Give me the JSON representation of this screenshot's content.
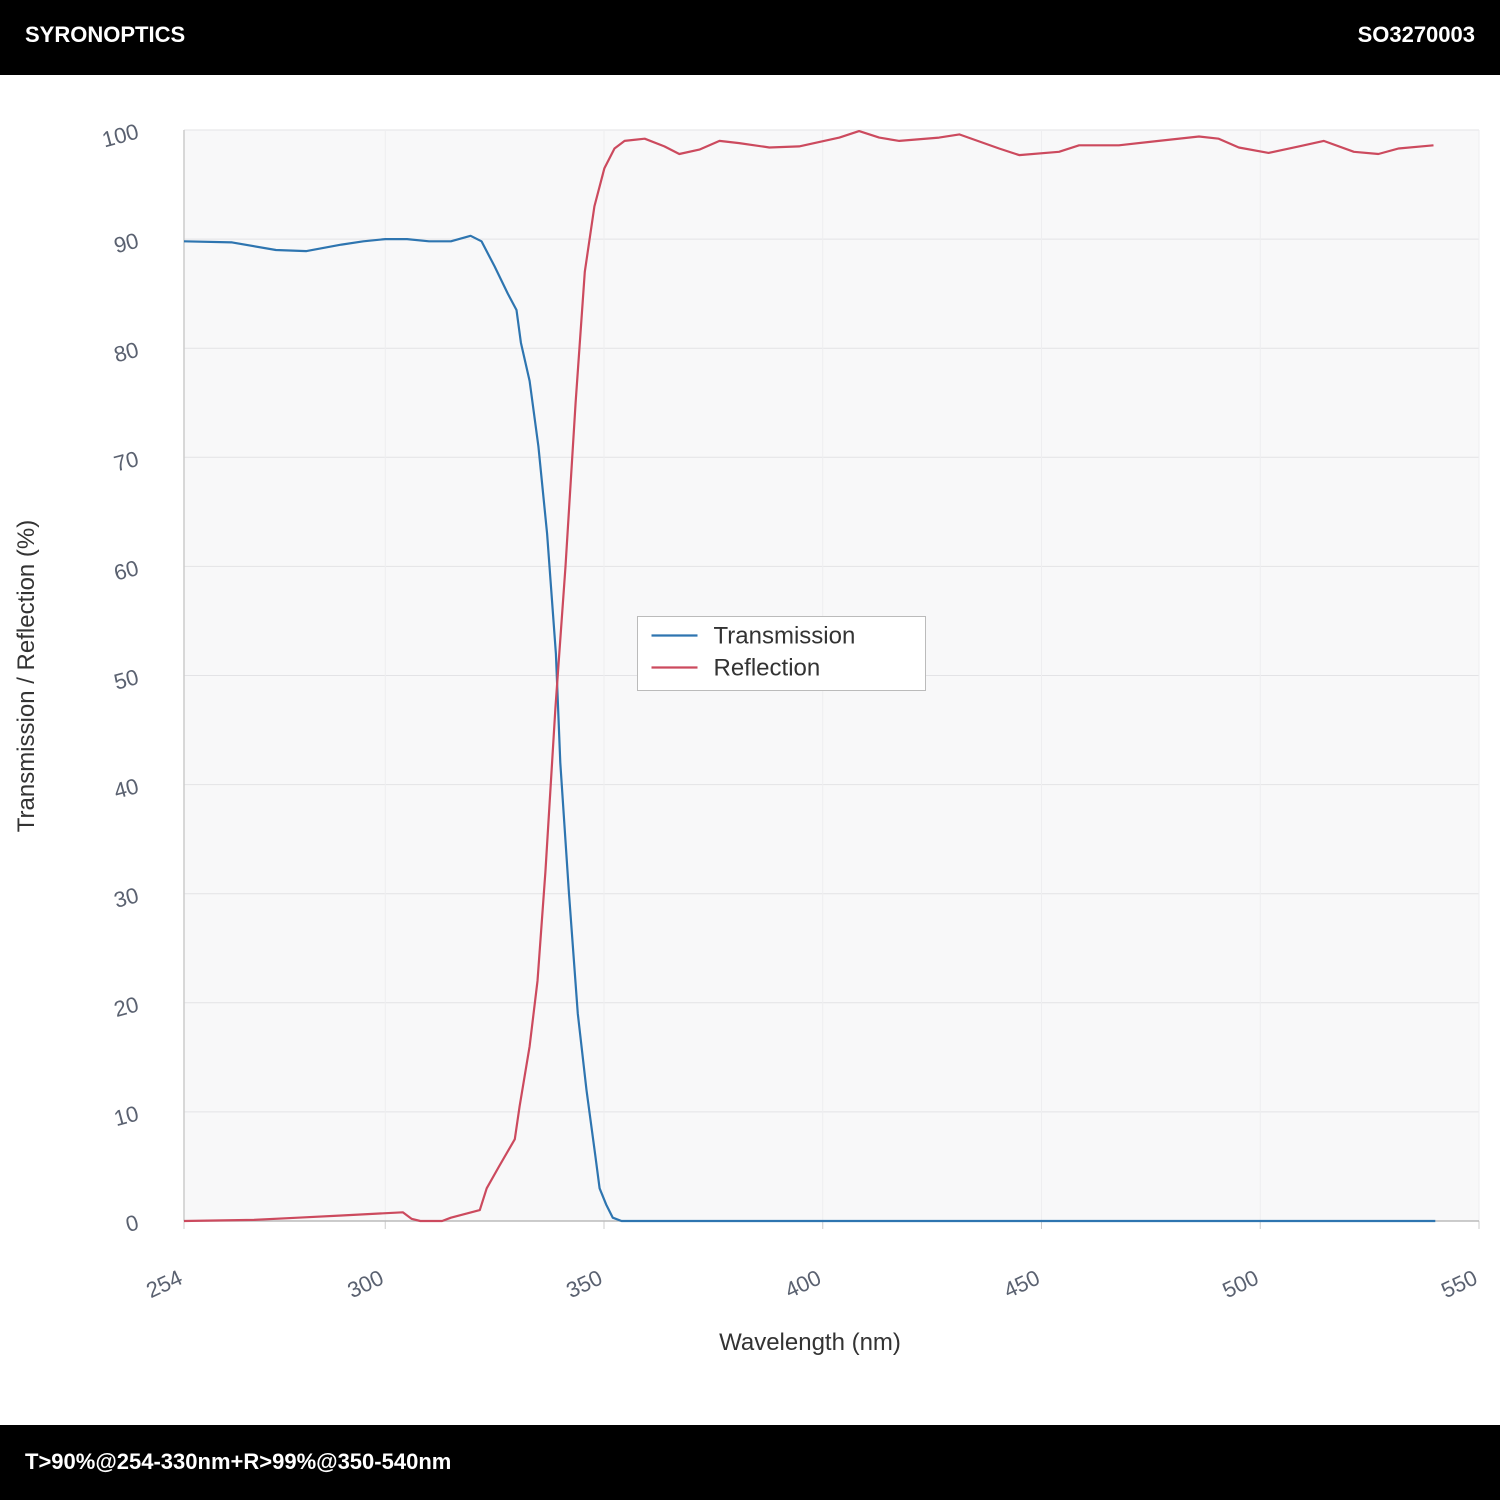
{
  "header": {
    "brand": "SYRONOPTICS",
    "code": "SO3270003"
  },
  "footer": {
    "text": "T>90%@254-330nm+R>99%@350-540nm"
  },
  "chart_data": {
    "type": "line",
    "x_label": "Wavelength (nm)",
    "y_label": "Transmission / Reflection (%)",
    "xlim": [
      254,
      550
    ],
    "xticks": [
      254,
      300,
      350,
      400,
      450,
      500,
      550
    ],
    "ylim": [
      0,
      100
    ],
    "yticks": [
      0,
      10,
      20,
      30,
      40,
      50,
      60,
      70,
      80,
      90,
      100
    ],
    "grid": true,
    "legend": "center",
    "series": [
      {
        "name": "Transmission",
        "color": "#2e75b0",
        "x": [
          254,
          265,
          275,
          282,
          290,
          295,
          300,
          305,
          310,
          315,
          319.5,
          322,
          325,
          328,
          330,
          331,
          333,
          335,
          337,
          339,
          340,
          342,
          344,
          346,
          348,
          349,
          350.5,
          352,
          354,
          540
        ],
        "values": [
          89.8,
          89.7,
          89.0,
          88.9,
          89.5,
          89.8,
          90.0,
          90.0,
          89.8,
          89.8,
          90.3,
          89.8,
          87.5,
          85,
          83.5,
          80.5,
          77,
          71,
          63,
          52,
          42,
          30,
          19,
          12,
          6,
          3,
          1.5,
          0.3,
          0,
          0
        ]
      },
      {
        "name": "Reflection",
        "color": "#cc4a5e",
        "x": [
          254,
          270,
          280,
          290,
          304,
          306,
          308,
          313,
          315,
          321.6,
          323.2,
          326,
          329.6,
          330.7,
          333,
          334.8,
          336.6,
          338.9,
          341.2,
          343.5,
          345.6,
          347.8,
          350.1,
          352.4,
          354.7,
          359.3,
          363.8,
          367.2,
          371.8,
          376.4,
          380.9,
          387.8,
          394.6,
          403.8,
          408.3,
          412.9,
          417.5,
          426.6,
          431.2,
          440.3,
          444.9,
          454,
          458.6,
          467.7,
          476.8,
          486,
          490.5,
          495.1,
          501.9,
          508.8,
          514.5,
          521.4,
          527,
          531.6,
          539.6
        ],
        "values": [
          0,
          0.1,
          0.3,
          0.5,
          0.8,
          0.2,
          0,
          0,
          0.3,
          1.0,
          3,
          5,
          7.5,
          10.5,
          16,
          22,
          32,
          47,
          60,
          75,
          87,
          93,
          96.5,
          98.3,
          99.0,
          99.2,
          98.5,
          97.8,
          98.2,
          99.0,
          98.8,
          98.4,
          98.5,
          99.3,
          99.9,
          99.3,
          99.0,
          99.3,
          99.6,
          98.3,
          97.7,
          98.0,
          98.6,
          98.6,
          99.0,
          99.4,
          99.2,
          98.4,
          97.9,
          98.5,
          99.0,
          98.0,
          97.8,
          98.3,
          98.6
        ]
      }
    ]
  }
}
